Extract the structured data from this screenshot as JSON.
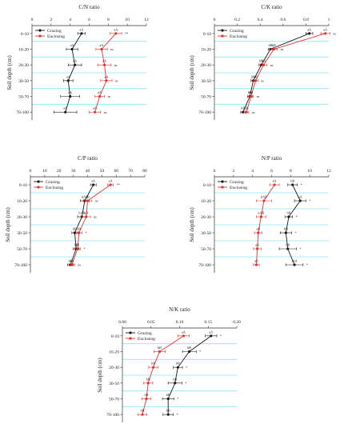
{
  "figure": {
    "ylabel": "Soil depth (cm)"
  },
  "colors": {
    "grazing": "#1a1a1a",
    "enclosing": "#e8322d",
    "grid": "#8ee8f2"
  },
  "chart_data": [
    {
      "type": "line",
      "title": "C/N ratio",
      "xlim": [
        0,
        12
      ],
      "xticks": [
        "0",
        "2",
        "4",
        "6",
        "8",
        "10",
        "12"
      ],
      "categories": [
        "0-10",
        "10-20",
        "20-30",
        "30-50",
        "50-70",
        "70-100"
      ],
      "legend": "top-left",
      "series": [
        {
          "name": "Grazing",
          "values": [
            5.2,
            4.2,
            4.5,
            3.8,
            4.0,
            3.5
          ],
          "err": [
            0.4,
            0.6,
            0.7,
            0.5,
            1.0,
            1.2
          ],
          "labels": [
            "aA",
            "aA",
            "aA",
            "aA",
            "aA",
            "aA"
          ]
        },
        {
          "name": "Enclosing",
          "values": [
            8.8,
            7.3,
            7.6,
            7.8,
            7.1,
            6.6
          ],
          "err": [
            0.6,
            0.6,
            0.7,
            0.6,
            0.5,
            0.6
          ],
          "labels": [
            "aA",
            "aA",
            "aA",
            "aA",
            "aA",
            "aA"
          ]
        }
      ],
      "sig": [
        "**",
        "ns",
        "ns",
        "ns",
        "ns",
        "ns"
      ]
    },
    {
      "type": "line",
      "title": "C/K ratio",
      "xlim": [
        0,
        1
      ],
      "xticks": [
        "0",
        "0.2",
        "0.4",
        "0.6",
        "0.8",
        "1"
      ],
      "categories": [
        "0-10",
        "10-20",
        "20-30",
        "30-50",
        "50-70",
        "70-100"
      ],
      "legend": "top-left",
      "series": [
        {
          "name": "Grazing",
          "values": [
            0.83,
            0.49,
            0.41,
            0.34,
            0.31,
            0.25
          ],
          "err": [
            0.03,
            0.02,
            0.02,
            0.02,
            0.02,
            0.02
          ],
          "labels": [
            "aA",
            "bB",
            "bB",
            "bB",
            "bB",
            "bB"
          ]
        },
        {
          "name": "Enclosing",
          "values": [
            0.97,
            0.52,
            0.43,
            0.36,
            0.32,
            0.28
          ],
          "err": [
            0.04,
            0.03,
            0.03,
            0.02,
            0.02,
            0.02
          ],
          "labels": [
            "aA",
            "bB",
            "bB",
            "bB",
            "bB",
            "bB"
          ]
        }
      ],
      "sig": [
        "ns",
        "ns",
        "ns",
        "ns",
        "ns",
        "ns"
      ]
    },
    {
      "type": "line",
      "title": "C/P ratio",
      "xlim": [
        0,
        80
      ],
      "xticks": [
        "0",
        "10",
        "20",
        "30",
        "40",
        "50",
        "60",
        "70",
        "80"
      ],
      "categories": [
        "0-10",
        "10-20",
        "20-30",
        "30-50",
        "50-70",
        "70-100"
      ],
      "legend": "top-left",
      "series": [
        {
          "name": "Grazing",
          "values": [
            44,
            38,
            36,
            31,
            32,
            28
          ],
          "err": [
            2,
            3,
            3,
            2,
            2,
            2
          ],
          "labels": [
            "aA",
            "bAB",
            "bAB",
            "bB",
            "bB",
            "bB"
          ]
        },
        {
          "name": "Enclosing",
          "values": [
            56,
            40,
            39,
            34,
            33,
            29
          ],
          "err": [
            2,
            3,
            3,
            2,
            2,
            2
          ],
          "labels": [
            "aA",
            "aB",
            "aB",
            "aB",
            "aB",
            "aB"
          ]
        }
      ],
      "sig": [
        "**",
        "ns",
        "ns",
        "*",
        "*",
        "ns"
      ]
    },
    {
      "type": "line",
      "title": "N/P ratio",
      "xlim": [
        0,
        12
      ],
      "xticks": [
        "0",
        "2",
        "4",
        "6",
        "8",
        "10",
        "12"
      ],
      "categories": [
        "0-10",
        "10-20",
        "20-30",
        "30-50",
        "50-70",
        "70-100"
      ],
      "legend": "top-left",
      "series": [
        {
          "name": "Grazing",
          "values": [
            8.2,
            9.0,
            7.8,
            7.5,
            7.7,
            8.4
          ],
          "err": [
            0.5,
            0.6,
            0.4,
            0.6,
            0.9,
            0.9
          ],
          "labels": [
            "bB",
            "aA",
            "bB",
            "bB",
            "bB",
            "abA"
          ]
        },
        {
          "name": "Enclosing",
          "values": [
            6.3,
            5.2,
            4.9,
            4.6,
            4.5,
            4.4
          ],
          "err": [
            0.5,
            0.8,
            0.5,
            0.4,
            0.4,
            0.3
          ],
          "labels": [
            "aA",
            "bAB",
            "aAB",
            "aB",
            "aB",
            "aB"
          ]
        }
      ],
      "sig": [
        "*",
        "*",
        "*",
        "*",
        "*",
        "*"
      ]
    },
    {
      "type": "line",
      "title": "N/K ratio",
      "xlim": [
        0,
        0.2
      ],
      "xticks": [
        "0.00",
        "0.05",
        "0.10",
        "0.15",
        "0.20"
      ],
      "categories": [
        "0-10",
        "10-20",
        "20-30",
        "30-50",
        "50-70",
        "70-100"
      ],
      "legend": "top-left",
      "series": [
        {
          "name": "Grazing",
          "values": [
            0.155,
            0.117,
            0.097,
            0.092,
            0.08,
            0.08
          ],
          "err": [
            0.01,
            0.012,
            0.008,
            0.012,
            0.01,
            0.009
          ],
          "labels": [
            "aA",
            "bB",
            "bB",
            "bB",
            "bB",
            "bB"
          ]
        },
        {
          "name": "Enclosing",
          "values": [
            0.107,
            0.065,
            0.054,
            0.045,
            0.042,
            0.035
          ],
          "err": [
            0.01,
            0.01,
            0.008,
            0.008,
            0.008,
            0.008
          ],
          "labels": [
            "aA",
            "bB",
            "bB",
            "bB",
            "bB",
            "bB"
          ]
        }
      ],
      "sig": [
        "*",
        "*",
        "*",
        "*",
        "*",
        "*"
      ]
    }
  ]
}
